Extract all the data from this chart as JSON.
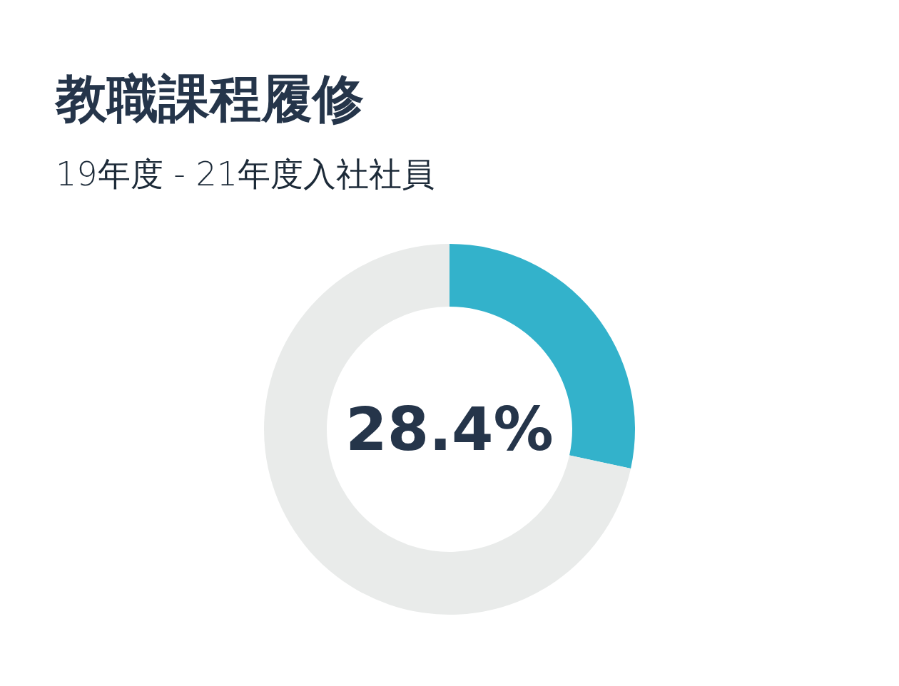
{
  "chart_data": {
    "type": "donut",
    "title": "教職課程履修",
    "subtitle": "19年度 - 21年度入社社員",
    "categories": [
      null,
      null
    ],
    "values": [
      28.4,
      71.6
    ],
    "colors": [
      "#33b2cb",
      "#e9ebea"
    ],
    "annotations": [
      "28.4%"
    ]
  }
}
